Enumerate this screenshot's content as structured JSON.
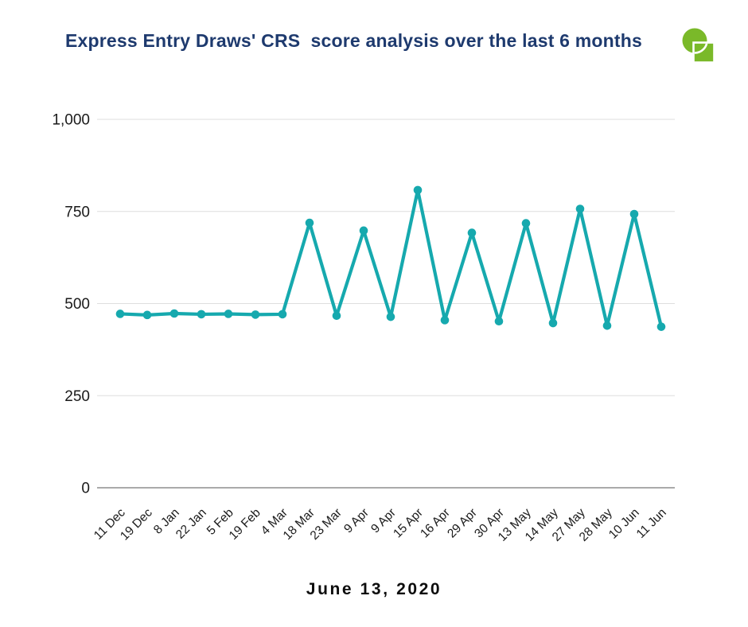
{
  "header": {
    "title": "Express Entry Draws' CRS  score analysis over the last 6 months",
    "logo": "green-circle-square-logo"
  },
  "footer": {
    "date_label": "June 13, 2020"
  },
  "colors": {
    "background": "#FFFFFF",
    "title": "#1E3A6E",
    "line": "#16A9AE",
    "grid": "#DEDEDE",
    "axis": "#8E8E8E",
    "tick_text": "#1A1A1A",
    "date_text": "#0D0D0D",
    "logo_green": "#7AB929"
  },
  "chart_data": {
    "type": "line",
    "title": "Express Entry Draws' CRS score analysis over the last 6 months",
    "x": [
      "11 Dec",
      "19 Dec",
      "8 Jan",
      "22 Jan",
      "5 Feb",
      "19 Feb",
      "4 Mar",
      "18 Mar",
      "23 Mar",
      "9 Apr",
      "9 Apr",
      "15 Apr",
      "16 Apr",
      "29 Apr",
      "30 Apr",
      "13 May",
      "14 May",
      "27 May",
      "28 May",
      "10 Jun",
      "11 Jun"
    ],
    "series": [
      {
        "name": "CRS score",
        "values": [
          472,
          469,
          473,
          471,
          472,
          470,
          471,
          719,
          467,
          698,
          464,
          808,
          455,
          692,
          452,
          718,
          447,
          757,
          440,
          743,
          437
        ]
      }
    ],
    "xlabel": "",
    "ylabel": "",
    "ylim": [
      0,
      1000
    ],
    "yticks": [
      0,
      250,
      500,
      750,
      1000
    ],
    "ytick_labels": [
      "0",
      "250",
      "500",
      "750",
      "1,000"
    ],
    "grid": "horizontal",
    "legend": "none",
    "marker": "circle",
    "x_label_rotation": -45
  }
}
